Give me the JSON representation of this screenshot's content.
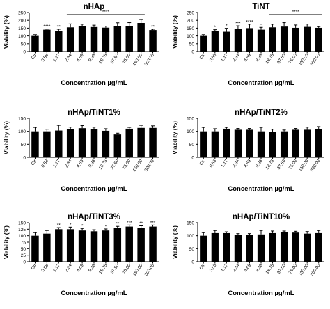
{
  "chart_data": [
    {
      "type": "bar",
      "title": "nHAp",
      "xlabel": "Concentration µg/mL",
      "ylabel": "Viability (%)",
      "ylim": [
        0,
        250
      ],
      "yticks": [
        0,
        50,
        100,
        150,
        200,
        250
      ],
      "categories": [
        "Ctr",
        "0.58",
        "1.17",
        "2.34",
        "4.69",
        "9.38",
        "18.75",
        "37.50",
        "75.00",
        "150.00",
        "300.00"
      ],
      "values": [
        100,
        140,
        133,
        155,
        165,
        157,
        153,
        162,
        165,
        183,
        138
      ],
      "errors": [
        8,
        4,
        10,
        22,
        10,
        12,
        10,
        22,
        20,
        22,
        5
      ],
      "significance": [
        "",
        "****",
        "**",
        "",
        "",
        "",
        "",
        "",
        "",
        "",
        "**"
      ],
      "bracket_label": "****",
      "bracket_range": [
        "2.34",
        "150.00"
      ],
      "legend": "none",
      "grid": false
    },
    {
      "type": "bar",
      "title": "TiNT",
      "xlabel": "Concentration µg/mL",
      "ylabel": "Viability (%)",
      "ylim": [
        0,
        250
      ],
      "yticks": [
        0,
        50,
        100,
        150,
        200,
        250
      ],
      "categories": [
        "Ctr",
        "0.58",
        "1.17",
        "2.34",
        "4.69",
        "9.38",
        "18.75",
        "37.50",
        "75.00",
        "150.00",
        "300.00"
      ],
      "values": [
        100,
        130,
        127,
        145,
        150,
        140,
        155,
        160,
        152,
        158,
        152
      ],
      "errors": [
        8,
        10,
        22,
        20,
        25,
        15,
        20,
        25,
        18,
        18,
        8
      ],
      "significance": [
        "",
        "*",
        "*",
        "***",
        "****",
        "**",
        "",
        "",
        "",
        "",
        ""
      ],
      "bracket_label": "****",
      "bracket_range": [
        "18.75",
        "300.00"
      ],
      "legend": "none",
      "grid": false
    },
    {
      "type": "bar",
      "title": "nHAp/TiNT1%",
      "xlabel": "Concentration µg/mL",
      "ylabel": "Viability (%)",
      "ylim": [
        0,
        150
      ],
      "yticks": [
        0,
        50,
        100,
        150
      ],
      "categories": [
        "Ctr",
        "0.58",
        "1.17",
        "2.34",
        "4.69",
        "9.38",
        "18.75",
        "37.50",
        "75.00",
        "150.00",
        "300.00"
      ],
      "values": [
        100,
        100,
        103,
        108,
        112,
        108,
        102,
        88,
        110,
        113,
        113
      ],
      "errors": [
        15,
        8,
        20,
        8,
        10,
        8,
        8,
        5,
        5,
        10,
        8
      ],
      "significance": [
        "",
        "",
        "",
        "",
        "",
        "",
        "",
        "",
        "",
        "",
        ""
      ],
      "legend": "none",
      "grid": false
    },
    {
      "type": "bar",
      "title": "nHAp/TiNT2%",
      "xlabel": "Concentration µg/mL",
      "ylabel": "Viability (%)",
      "ylim": [
        0,
        150
      ],
      "yticks": [
        0,
        50,
        100,
        150
      ],
      "categories": [
        "Ctr",
        "0.58",
        "1.17",
        "2.34",
        "4.69",
        "9.38",
        "18.75",
        "37.50",
        "75.00",
        "150.00",
        "300.00"
      ],
      "values": [
        100,
        100,
        110,
        106,
        106,
        100,
        98,
        100,
        106,
        106,
        108
      ],
      "errors": [
        15,
        10,
        5,
        5,
        5,
        15,
        10,
        5,
        5,
        10,
        10
      ],
      "significance": [
        "",
        "",
        "",
        "",
        "",
        "",
        "",
        "",
        "",
        "",
        ""
      ],
      "legend": "none",
      "grid": false
    },
    {
      "type": "bar",
      "title": "nHAp/TiNT3%",
      "xlabel": "Concentration µg/mL",
      "ylabel": "Viability (%)",
      "ylim": [
        0,
        150
      ],
      "yticks": [
        0,
        25,
        50,
        75,
        100,
        125,
        150
      ],
      "categories": [
        "Ctr",
        "0.58",
        "1.17",
        "2.34",
        "4.69",
        "9.38",
        "18.75",
        "37.50",
        "75.00",
        "150.00",
        "300.00"
      ],
      "values": [
        100,
        108,
        125,
        125,
        120,
        117,
        120,
        130,
        135,
        130,
        135
      ],
      "errors": [
        12,
        12,
        6,
        8,
        8,
        6,
        6,
        6,
        6,
        8,
        6
      ],
      "significance": [
        "",
        "",
        "**",
        "*",
        "*",
        "",
        "*",
        "**",
        "***",
        "**",
        "***"
      ],
      "legend": "none",
      "grid": false
    },
    {
      "type": "bar",
      "title": "nHAp/TiNT10%",
      "xlabel": "Concentration µg/mL",
      "ylabel": "Viability (%)",
      "ylim": [
        0,
        150
      ],
      "yticks": [
        0,
        50,
        100,
        150
      ],
      "categories": [
        "Ctr",
        "0.58",
        "1.17",
        "2.34",
        "4.69",
        "9.38",
        "18.75",
        "37.50",
        "75.00",
        "150.00",
        "300.00"
      ],
      "values": [
        100,
        110,
        110,
        103,
        103,
        105,
        110,
        113,
        112,
        108,
        110
      ],
      "errors": [
        12,
        10,
        5,
        5,
        5,
        15,
        8,
        5,
        5,
        8,
        10
      ],
      "significance": [
        "",
        "",
        "",
        "",
        "",
        "",
        "",
        "",
        "",
        "",
        ""
      ],
      "legend": "none",
      "grid": false
    }
  ]
}
